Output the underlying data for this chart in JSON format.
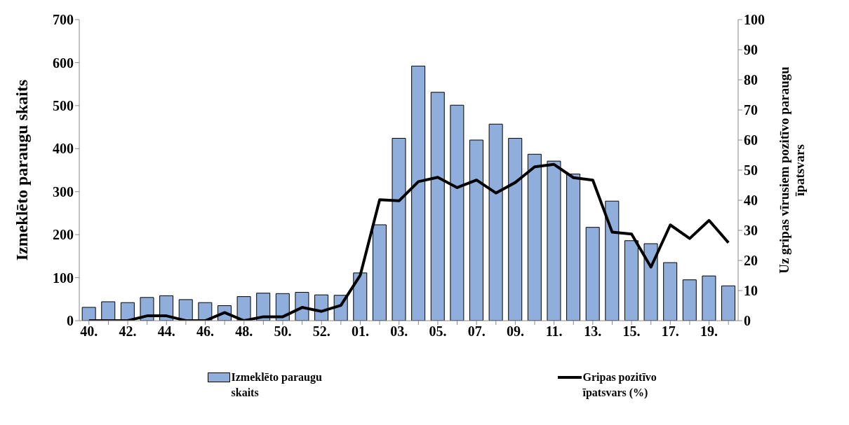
{
  "chart_data": {
    "type": "bar",
    "categories": [
      "40.",
      null,
      "42.",
      null,
      "44.",
      null,
      "46.",
      null,
      "48.",
      null,
      "50.",
      null,
      "52.",
      null,
      "01.",
      null,
      "03.",
      null,
      "05.",
      null,
      "07.",
      null,
      "09.",
      null,
      "11.",
      null,
      "13.",
      null,
      "15.",
      null,
      "17.",
      null,
      "19.",
      null
    ],
    "ylabel": "Izmeklēto paraugu skaits",
    "y2label": "Uz gripas vīrusiem pozitīvo paraugu īpatsvars",
    "series": [
      {
        "name": "Izmeklēto paraugu skaits",
        "color": "#8faedb",
        "values": [
          31,
          44,
          42,
          54,
          58,
          49,
          42,
          35,
          56,
          64,
          63,
          66,
          60,
          59,
          111,
          223,
          424,
          592,
          531,
          501,
          420,
          457,
          424,
          387,
          371,
          341,
          217,
          278,
          186,
          179,
          135,
          95,
          104,
          81
        ]
      },
      {
        "name": "Gripas pozitīvo īpatsvars (%)",
        "type": "line",
        "axis": "y2",
        "color": "#000000",
        "values": [
          0,
          0,
          0,
          1.6,
          1.6,
          0,
          0,
          2.7,
          0,
          1.3,
          1.3,
          4.4,
          3.1,
          5.1,
          15.1,
          40.2,
          39.8,
          46.2,
          47.6,
          44.2,
          46.7,
          42.4,
          45.9,
          51.1,
          51.9,
          47.5,
          46.7,
          29.4,
          28.8,
          17.8,
          31.8,
          27.3,
          33.3,
          25.9
        ]
      }
    ],
    "ylim": [
      0,
      700
    ],
    "yticks": [
      0,
      100,
      200,
      300,
      400,
      500,
      600,
      700
    ],
    "y2lim": [
      0,
      100
    ],
    "y2ticks": [
      0,
      10,
      20,
      30,
      40,
      50,
      60,
      70,
      80,
      90,
      100
    ],
    "grid": false,
    "legend": "bottom",
    "marker": "none",
    "line_style": "solid"
  }
}
